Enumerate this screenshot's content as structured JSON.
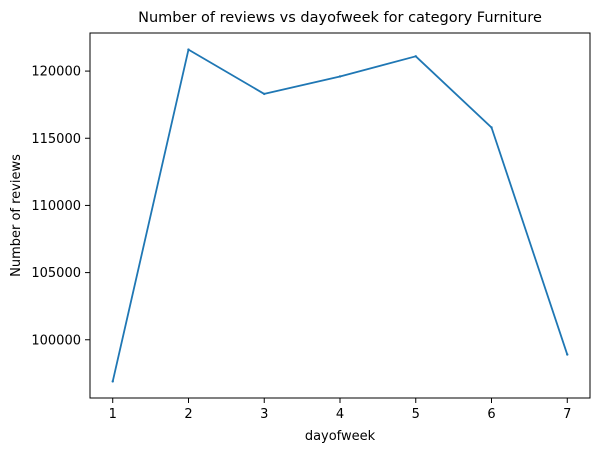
{
  "chart_data": {
    "type": "line",
    "title": "Number of reviews vs dayofweek for category Furniture",
    "xlabel": "dayofweek",
    "ylabel": "Number of reviews",
    "x": [
      1,
      2,
      3,
      4,
      5,
      6,
      7
    ],
    "series": [
      {
        "values": [
          96900,
          121600,
          118300,
          119600,
          121100,
          115800,
          98900
        ]
      }
    ],
    "x_ticks": [
      1,
      2,
      3,
      4,
      5,
      6,
      7
    ],
    "y_ticks": [
      100000,
      105000,
      110000,
      115000,
      120000
    ],
    "xlim": [
      0.7,
      7.3
    ],
    "ylim": [
      95665,
      122835
    ],
    "grid": false,
    "line_color": "#1f77b4"
  }
}
